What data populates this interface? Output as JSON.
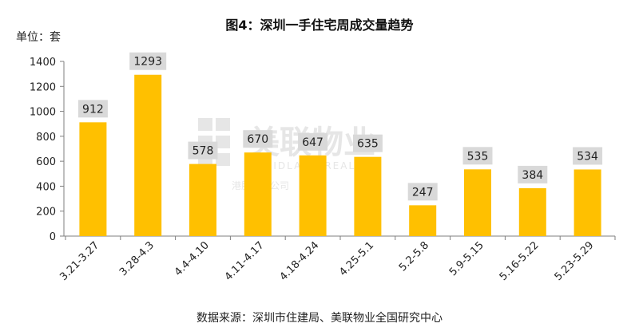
{
  "chart_data": {
    "type": "bar",
    "title": "图4：深圳一手住宅周成交量趋势",
    "unit_label": "单位：套",
    "source": "数据来源：深圳市住建局、美联物业全国研究中心",
    "categories": [
      "3.21-3.27",
      "3.28-4.3",
      "4.4-4.10",
      "4.11-4.17",
      "4.18-4.24",
      "4.25-5.1",
      "5.2-5.8",
      "5.9-5.15",
      "5.16-5.22",
      "5.23-5.29"
    ],
    "values": [
      912,
      1293,
      578,
      670,
      647,
      635,
      247,
      535,
      384,
      534
    ],
    "ylim": [
      0,
      1400
    ],
    "yticks": [
      0,
      200,
      400,
      600,
      800,
      1000,
      1200,
      1400
    ],
    "grid": false,
    "bar_color": "#FFC000",
    "label_bg_color": "#D9D9D9",
    "watermark": {
      "brand": "美联物业",
      "english": "MIDLAND REALTY",
      "slogan": "港股上市公司",
      "color": "#E6E6E6"
    }
  }
}
